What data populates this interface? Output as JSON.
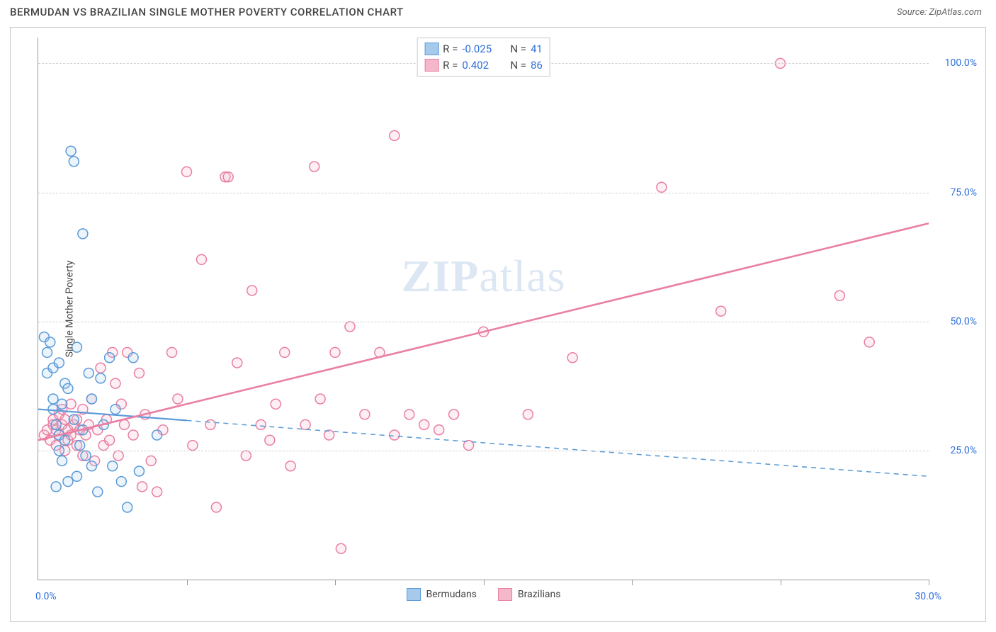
{
  "header": {
    "title": "BERMUDAN VS BRAZILIAN SINGLE MOTHER POVERTY CORRELATION CHART",
    "source": "Source: ZipAtlas.com"
  },
  "watermark": {
    "bold": "ZIP",
    "light": "atlas"
  },
  "chart": {
    "type": "scatter",
    "yaxis_title": "Single Mother Poverty",
    "xlim": [
      0,
      30
    ],
    "ylim": [
      0,
      105
    ],
    "ytick_values": [
      25,
      50,
      75,
      100
    ],
    "ytick_labels": [
      "25.0%",
      "50.0%",
      "75.0%",
      "100.0%"
    ],
    "xtick_values": [
      0,
      5,
      10,
      15,
      20,
      25,
      30
    ],
    "xlabel_min": "0.0%",
    "xlabel_max": "30.0%",
    "grid_color": "#d0d0d0",
    "axis_color": "#999999",
    "background_color": "#ffffff",
    "marker_radius": 7,
    "marker_stroke_width": 1.5,
    "marker_fill_opacity": 0.22,
    "series": [
      {
        "name": "Bermudans",
        "color_stroke": "#5a9bd8",
        "color_fill": "#a6c9ec",
        "R": "-0.025",
        "N": "41",
        "trend": {
          "x1": 0,
          "y1": 33,
          "x2": 30,
          "y2": 20,
          "solid_until_x": 5,
          "width": 2.2
        },
        "points": [
          [
            0.2,
            47
          ],
          [
            0.3,
            44
          ],
          [
            0.3,
            40
          ],
          [
            0.4,
            46
          ],
          [
            0.5,
            35
          ],
          [
            0.5,
            41
          ],
          [
            0.5,
            33
          ],
          [
            0.6,
            30
          ],
          [
            0.6,
            18
          ],
          [
            0.7,
            28
          ],
          [
            0.7,
            25
          ],
          [
            0.7,
            42
          ],
          [
            0.8,
            34
          ],
          [
            0.8,
            23
          ],
          [
            0.9,
            27
          ],
          [
            0.9,
            38
          ],
          [
            1.0,
            19
          ],
          [
            1.0,
            37
          ],
          [
            1.1,
            83
          ],
          [
            1.2,
            81
          ],
          [
            1.2,
            31
          ],
          [
            1.3,
            20
          ],
          [
            1.3,
            45
          ],
          [
            1.4,
            26
          ],
          [
            1.5,
            67
          ],
          [
            1.5,
            29
          ],
          [
            1.6,
            24
          ],
          [
            1.7,
            40
          ],
          [
            1.8,
            35
          ],
          [
            1.8,
            22
          ],
          [
            2.0,
            17
          ],
          [
            2.1,
            39
          ],
          [
            2.2,
            30
          ],
          [
            2.4,
            43
          ],
          [
            2.5,
            22
          ],
          [
            2.6,
            33
          ],
          [
            2.8,
            19
          ],
          [
            3.0,
            14
          ],
          [
            3.2,
            43
          ],
          [
            3.4,
            21
          ],
          [
            4.0,
            28
          ]
        ]
      },
      {
        "name": "Brazilians",
        "color_stroke": "#e97fa2",
        "color_fill": "#f5b8cb",
        "R": "0.402",
        "N": "86",
        "trend": {
          "x1": 0,
          "y1": 27,
          "x2": 30,
          "y2": 69,
          "solid_until_x": 30,
          "width": 2.6
        },
        "points": [
          [
            0.2,
            28
          ],
          [
            0.3,
            29
          ],
          [
            0.4,
            27
          ],
          [
            0.5,
            31
          ],
          [
            0.5,
            30
          ],
          [
            0.6,
            26
          ],
          [
            0.6,
            29
          ],
          [
            0.7,
            32
          ],
          [
            0.7,
            28
          ],
          [
            0.8,
            30
          ],
          [
            0.8,
            33
          ],
          [
            0.9,
            25
          ],
          [
            0.9,
            31
          ],
          [
            1.0,
            27
          ],
          [
            1.0,
            29
          ],
          [
            1.1,
            34
          ],
          [
            1.1,
            28
          ],
          [
            1.2,
            30
          ],
          [
            1.3,
            26
          ],
          [
            1.3,
            31
          ],
          [
            1.4,
            29
          ],
          [
            1.5,
            24
          ],
          [
            1.5,
            33
          ],
          [
            1.6,
            28
          ],
          [
            1.7,
            30
          ],
          [
            1.8,
            35
          ],
          [
            1.9,
            23
          ],
          [
            2.0,
            29
          ],
          [
            2.1,
            41
          ],
          [
            2.2,
            26
          ],
          [
            2.3,
            31
          ],
          [
            2.4,
            27
          ],
          [
            2.5,
            44
          ],
          [
            2.6,
            38
          ],
          [
            2.7,
            24
          ],
          [
            2.8,
            34
          ],
          [
            2.9,
            30
          ],
          [
            3.0,
            44
          ],
          [
            3.2,
            28
          ],
          [
            3.4,
            40
          ],
          [
            3.5,
            18
          ],
          [
            3.6,
            32
          ],
          [
            3.8,
            23
          ],
          [
            4.0,
            17
          ],
          [
            4.2,
            29
          ],
          [
            4.5,
            44
          ],
          [
            4.7,
            35
          ],
          [
            5.0,
            79
          ],
          [
            5.2,
            26
          ],
          [
            5.5,
            62
          ],
          [
            5.8,
            30
          ],
          [
            6.0,
            14
          ],
          [
            6.3,
            78
          ],
          [
            6.4,
            78
          ],
          [
            6.7,
            42
          ],
          [
            7.0,
            24
          ],
          [
            7.2,
            56
          ],
          [
            7.5,
            30
          ],
          [
            7.8,
            27
          ],
          [
            8.0,
            34
          ],
          [
            8.3,
            44
          ],
          [
            8.5,
            22
          ],
          [
            9.0,
            30
          ],
          [
            9.3,
            80
          ],
          [
            9.5,
            35
          ],
          [
            9.8,
            28
          ],
          [
            10.0,
            44
          ],
          [
            10.2,
            6
          ],
          [
            10.5,
            49
          ],
          [
            11.0,
            32
          ],
          [
            11.5,
            44
          ],
          [
            12.0,
            86
          ],
          [
            12.0,
            28
          ],
          [
            12.5,
            32
          ],
          [
            13.0,
            30
          ],
          [
            13.5,
            29
          ],
          [
            14.0,
            32
          ],
          [
            14.5,
            26
          ],
          [
            15.0,
            48
          ],
          [
            16.5,
            32
          ],
          [
            18.0,
            43
          ],
          [
            21.0,
            76
          ],
          [
            23.0,
            52
          ],
          [
            25.0,
            100
          ],
          [
            27.0,
            55
          ],
          [
            28.0,
            46
          ]
        ]
      }
    ],
    "legend_bottom": [
      {
        "label": "Bermudans",
        "stroke": "#5a9bd8",
        "fill": "#a6c9ec"
      },
      {
        "label": "Brazilians",
        "stroke": "#e97fa2",
        "fill": "#f5b8cb"
      }
    ]
  }
}
